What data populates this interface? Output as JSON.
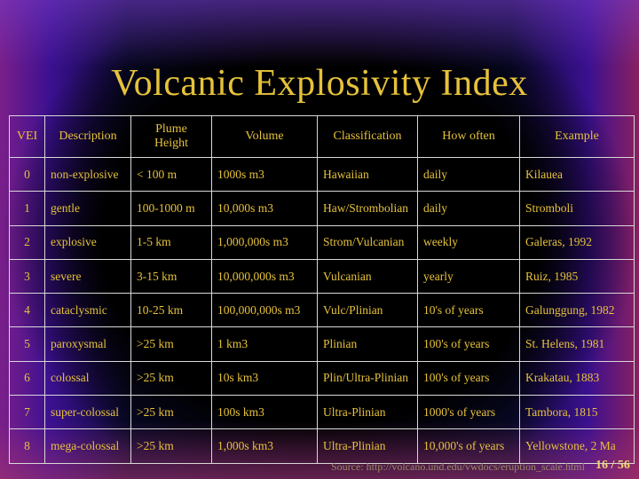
{
  "title": "Volcanic Explosivity Index",
  "table": {
    "headers": [
      "VEI",
      "Description",
      "Plume Height",
      "Volume",
      "Classification",
      "How often",
      "Example"
    ],
    "rows": [
      [
        "0",
        "non-explosive",
        "< 100 m",
        "1000s m3",
        "Hawaiian",
        "daily",
        "Kilauea"
      ],
      [
        "1",
        "gentle",
        "100-1000 m",
        "10,000s m3",
        "Haw/Strombolian",
        "daily",
        "Stromboli"
      ],
      [
        "2",
        "explosive",
        "1-5 km",
        "1,000,000s m3",
        "Strom/Vulcanian",
        "weekly",
        "Galeras, 1992"
      ],
      [
        "3",
        "severe",
        "3-15 km",
        "10,000,000s m3",
        "Vulcanian",
        "yearly",
        "Ruiz, 1985"
      ],
      [
        "4",
        "cataclysmic",
        "10-25 km",
        "100,000,000s m3",
        "Vulc/Plinian",
        "10's of years",
        "Galunggung, 1982"
      ],
      [
        "5",
        "paroxysmal",
        ">25 km",
        "1 km3",
        "Plinian",
        "100's of years",
        "St. Helens, 1981"
      ],
      [
        "6",
        "colossal",
        ">25 km",
        "10s km3",
        "Plin/Ultra-Plinian",
        "100's of years",
        "Krakatau, 1883"
      ],
      [
        "7",
        "super-colossal",
        ">25 km",
        "100s km3",
        "Ultra-Plinian",
        "1000's of years",
        "Tambora, 1815"
      ],
      [
        "8",
        "mega-colossal",
        ">25 km",
        "1,000s km3",
        "Ultra-Plinian",
        "10,000's of years",
        "Yellowstone, 2 Ma"
      ]
    ]
  },
  "source": "Source: http://volcano.und.edu/vwdocs/eruption_scale.html",
  "page": "16 / 56",
  "colors": {
    "text": "#e6c23a",
    "background": "#000000",
    "grid": "#d8d8d8"
  }
}
